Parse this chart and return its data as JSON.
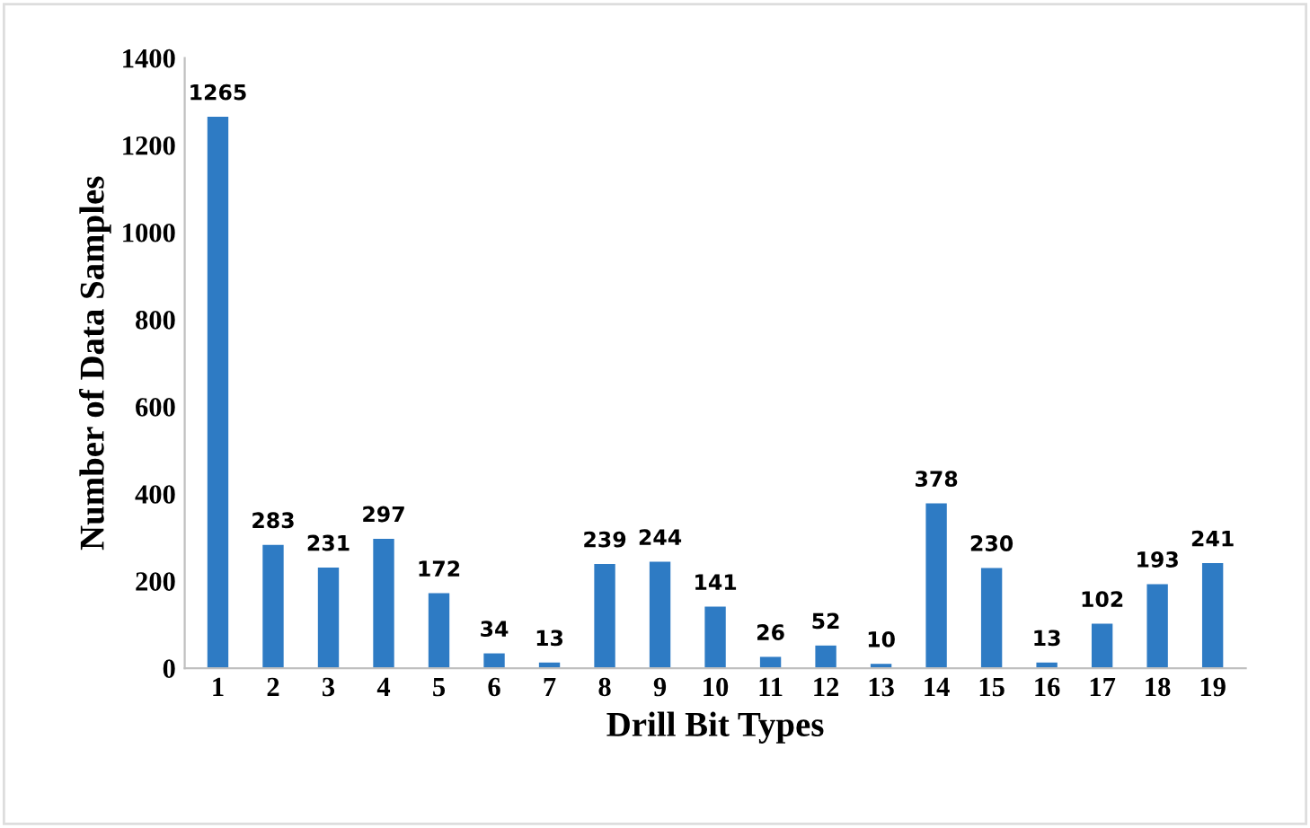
{
  "chart_data": {
    "type": "bar",
    "xlabel": "Drill Bit Types",
    "ylabel": "Number of Data Samples",
    "categories": [
      "1",
      "2",
      "3",
      "4",
      "5",
      "6",
      "7",
      "8",
      "9",
      "10",
      "11",
      "12",
      "13",
      "14",
      "15",
      "16",
      "17",
      "18",
      "19"
    ],
    "values": [
      1265,
      283,
      231,
      297,
      172,
      34,
      13,
      239,
      244,
      141,
      26,
      52,
      10,
      378,
      230,
      13,
      102,
      193,
      241
    ],
    "color": "#2e7bc4",
    "ylim": [
      0,
      1400
    ],
    "yticks": [
      0,
      200,
      400,
      600,
      800,
      1000,
      1200,
      1400
    ],
    "grid": false,
    "data_labels": true
  }
}
